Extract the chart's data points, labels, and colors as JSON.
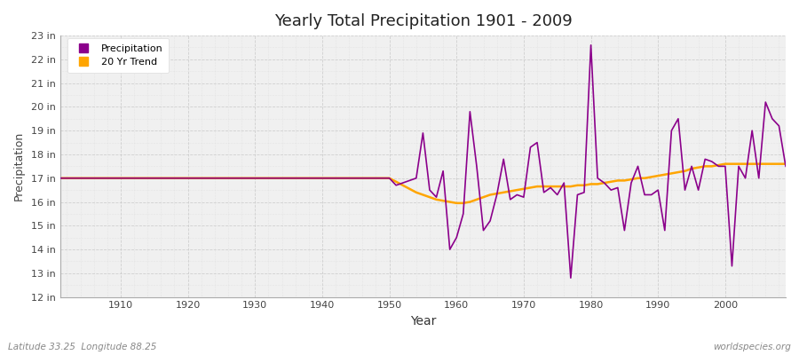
{
  "title": "Yearly Total Precipitation 1901 - 2009",
  "xlabel": "Year",
  "ylabel": "Precipitation",
  "fig_bg_color": "#ffffff",
  "plot_bg_color": "#f0f0f0",
  "precip_color": "#8B008B",
  "trend_color": "#FFA500",
  "ylim": [
    12,
    23
  ],
  "xlim_left": 1901,
  "xlim_right": 2009,
  "ytick_labels": [
    "12 in",
    "13 in",
    "14 in",
    "15 in",
    "16 in",
    "17 in",
    "18 in",
    "19 in",
    "20 in",
    "21 in",
    "22 in",
    "23 in"
  ],
  "ytick_values": [
    12,
    13,
    14,
    15,
    16,
    17,
    18,
    19,
    20,
    21,
    22,
    23
  ],
  "xtick_values": [
    1910,
    1920,
    1930,
    1940,
    1950,
    1960,
    1970,
    1980,
    1990,
    2000
  ],
  "footer_left": "Latitude 33.25  Longitude 88.25",
  "footer_right": "worldspecies.org",
  "legend_labels": [
    "Precipitation",
    "20 Yr Trend"
  ],
  "years": [
    1901,
    1902,
    1903,
    1904,
    1905,
    1906,
    1907,
    1908,
    1909,
    1910,
    1911,
    1912,
    1913,
    1914,
    1915,
    1916,
    1917,
    1918,
    1919,
    1920,
    1921,
    1922,
    1923,
    1924,
    1925,
    1926,
    1927,
    1928,
    1929,
    1930,
    1931,
    1932,
    1933,
    1934,
    1935,
    1936,
    1937,
    1938,
    1939,
    1940,
    1941,
    1942,
    1943,
    1944,
    1945,
    1946,
    1947,
    1948,
    1949,
    1950,
    1951,
    1952,
    1953,
    1954,
    1955,
    1956,
    1957,
    1958,
    1959,
    1960,
    1961,
    1962,
    1963,
    1964,
    1965,
    1966,
    1967,
    1968,
    1969,
    1970,
    1971,
    1972,
    1973,
    1974,
    1975,
    1976,
    1977,
    1978,
    1979,
    1980,
    1981,
    1982,
    1983,
    1984,
    1985,
    1986,
    1987,
    1988,
    1989,
    1990,
    1991,
    1992,
    1993,
    1994,
    1995,
    1996,
    1997,
    1998,
    1999,
    2000,
    2001,
    2002,
    2003,
    2004,
    2005,
    2006,
    2007,
    2008,
    2009
  ],
  "precip": [
    17.0,
    17.0,
    17.0,
    17.0,
    17.0,
    17.0,
    17.0,
    17.0,
    17.0,
    17.0,
    17.0,
    17.0,
    17.0,
    17.0,
    17.0,
    17.0,
    17.0,
    17.0,
    17.0,
    17.0,
    17.0,
    17.0,
    17.0,
    17.0,
    17.0,
    17.0,
    17.0,
    17.0,
    17.0,
    17.0,
    17.0,
    17.0,
    17.0,
    17.0,
    17.0,
    17.0,
    17.0,
    17.0,
    17.0,
    17.0,
    17.0,
    17.0,
    17.0,
    17.0,
    17.0,
    17.0,
    17.0,
    17.0,
    17.0,
    17.0,
    16.7,
    16.8,
    16.9,
    17.0,
    18.9,
    16.5,
    16.2,
    17.3,
    14.0,
    14.5,
    15.5,
    19.8,
    17.5,
    14.8,
    15.2,
    16.3,
    17.8,
    16.1,
    16.3,
    16.2,
    18.3,
    18.5,
    16.4,
    16.6,
    16.3,
    16.8,
    12.8,
    16.3,
    16.4,
    22.6,
    17.0,
    16.8,
    16.5,
    16.6,
    14.8,
    16.8,
    17.5,
    16.3,
    16.3,
    16.5,
    14.8,
    19.0,
    19.5,
    16.5,
    17.5,
    16.5,
    17.8,
    17.7,
    17.5,
    17.5,
    13.3,
    17.5,
    17.0,
    19.0,
    17.0,
    20.2,
    19.5,
    19.2,
    17.5
  ],
  "trend": [
    17.0,
    17.0,
    17.0,
    17.0,
    17.0,
    17.0,
    17.0,
    17.0,
    17.0,
    17.0,
    17.0,
    17.0,
    17.0,
    17.0,
    17.0,
    17.0,
    17.0,
    17.0,
    17.0,
    17.0,
    17.0,
    17.0,
    17.0,
    17.0,
    17.0,
    17.0,
    17.0,
    17.0,
    17.0,
    17.0,
    17.0,
    17.0,
    17.0,
    17.0,
    17.0,
    17.0,
    17.0,
    17.0,
    17.0,
    17.0,
    17.0,
    17.0,
    17.0,
    17.0,
    17.0,
    17.0,
    17.0,
    17.0,
    17.0,
    17.0,
    16.85,
    16.7,
    16.55,
    16.4,
    16.3,
    16.2,
    16.1,
    16.05,
    16.0,
    15.95,
    15.95,
    16.0,
    16.1,
    16.2,
    16.3,
    16.35,
    16.4,
    16.45,
    16.5,
    16.55,
    16.6,
    16.65,
    16.65,
    16.65,
    16.65,
    16.65,
    16.65,
    16.7,
    16.7,
    16.75,
    16.75,
    16.8,
    16.85,
    16.9,
    16.9,
    16.95,
    17.0,
    17.0,
    17.05,
    17.1,
    17.15,
    17.2,
    17.25,
    17.3,
    17.4,
    17.45,
    17.5,
    17.5,
    17.55,
    17.6,
    17.6,
    17.6,
    17.6,
    17.6,
    17.6,
    17.6,
    17.6,
    17.6,
    17.6
  ]
}
